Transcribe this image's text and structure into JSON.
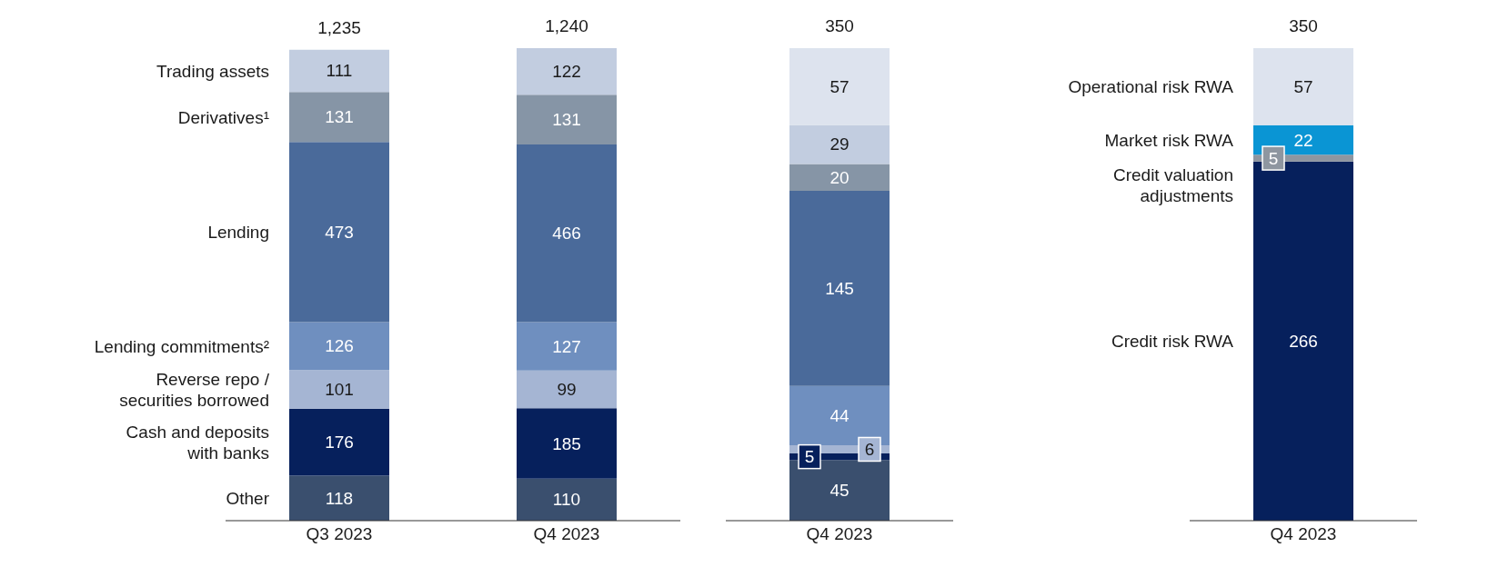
{
  "chart_data": [
    {
      "type": "bar",
      "stacked": true,
      "data_labels": true,
      "categories": [
        "Q3 2023",
        "Q4 2023"
      ],
      "totals": [
        "1,235",
        "1,240"
      ],
      "series": [
        {
          "name": "Other",
          "color": "#3a4f6e",
          "values": [
            118,
            110
          ]
        },
        {
          "name": "Cash and deposits with banks",
          "color": "#06205c",
          "values": [
            176,
            185
          ]
        },
        {
          "name": "Reverse repo / securities borrowed",
          "color": "#a5b5d3",
          "values": [
            101,
            99
          ]
        },
        {
          "name": "Lending commitments²",
          "color": "#6f8fbf",
          "values": [
            126,
            127
          ]
        },
        {
          "name": "Lending",
          "color": "#4a6a9a",
          "values": [
            473,
            466
          ]
        },
        {
          "name": "Derivatives¹",
          "color": "#8695a6",
          "values": [
            131,
            131
          ]
        },
        {
          "name": "Trading assets",
          "color": "#c2cde0",
          "values": [
            111,
            122
          ]
        }
      ]
    },
    {
      "type": "bar",
      "stacked": true,
      "data_labels": true,
      "categories": [
        "Q4 2023"
      ],
      "totals": [
        "350"
      ],
      "series": [
        {
          "color": "#3a4f6e",
          "values": [
            45
          ]
        },
        {
          "color": "#06205c",
          "values": [
            5
          ]
        },
        {
          "color": "#a5b5d3",
          "values": [
            6
          ]
        },
        {
          "color": "#6f8fbf",
          "values": [
            44
          ]
        },
        {
          "color": "#4a6a9a",
          "values": [
            145
          ]
        },
        {
          "color": "#8695a6",
          "values": [
            20
          ]
        },
        {
          "color": "#c2cde0",
          "values": [
            29
          ]
        },
        {
          "color": "#dde3ee",
          "values": [
            57
          ]
        }
      ]
    },
    {
      "type": "bar",
      "stacked": true,
      "data_labels": true,
      "categories": [
        "Q4 2023"
      ],
      "totals": [
        "350"
      ],
      "series": [
        {
          "name": "Credit risk RWA",
          "color": "#06205c",
          "values": [
            266
          ]
        },
        {
          "name": "Credit valuation adjustments",
          "color": "#8e96a0",
          "values": [
            5
          ]
        },
        {
          "name": "Market risk RWA",
          "color": "#0a95d4",
          "values": [
            22
          ]
        },
        {
          "name": "Operational risk RWA",
          "color": "#dde3ee",
          "values": [
            57
          ]
        }
      ]
    }
  ]
}
